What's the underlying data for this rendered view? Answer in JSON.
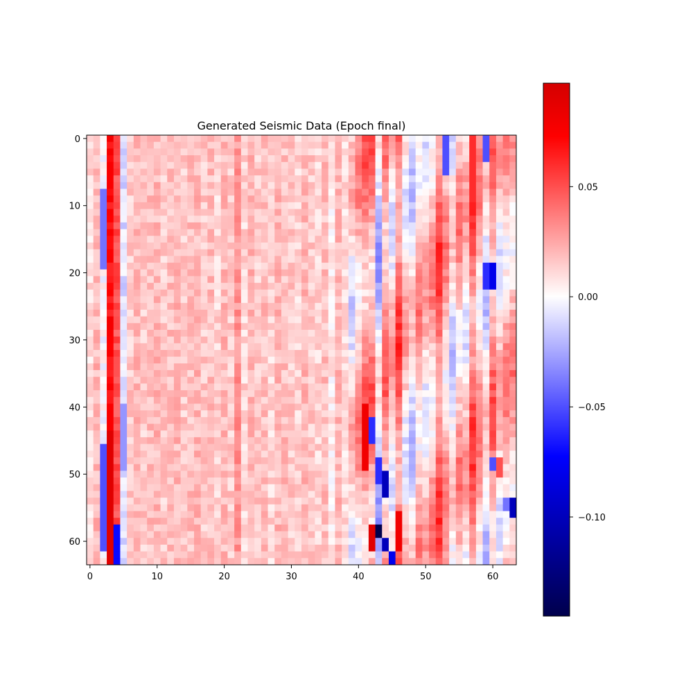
{
  "chart_data": {
    "type": "heatmap",
    "title": "Generated Seismic Data (Epoch final)",
    "xlabel": "",
    "ylabel": "",
    "rows": 64,
    "cols": 64,
    "x_ticks": [
      0,
      10,
      20,
      30,
      40,
      50,
      60
    ],
    "y_ticks": [
      0,
      10,
      20,
      30,
      40,
      50,
      60
    ],
    "colormap": "seismic",
    "colormap_stops": [
      "#00004c",
      "#0000ff",
      "#ffffff",
      "#ff0000",
      "#7f0000"
    ],
    "color_range": [
      -0.145,
      0.097
    ],
    "colorbar_ticks": [
      0.05,
      0.0,
      -0.05,
      -0.1
    ],
    "colorbar_tick_labels": [
      "0.05",
      "0.00",
      "−0.05",
      "−0.10"
    ],
    "column_profile": [
      0.01,
      0.02,
      0.0,
      0.07,
      0.05,
      -0.01,
      0.015,
      0.02,
      0.015,
      0.018,
      0.02,
      0.015,
      0.018,
      0.02,
      0.015,
      0.018,
      0.02,
      0.015,
      0.018,
      0.012,
      0.02,
      0.015,
      0.03,
      0.012,
      0.02,
      0.015,
      0.018,
      0.012,
      0.02,
      0.018,
      0.015,
      0.012,
      0.02,
      0.015,
      0.012,
      0.018,
      0.005,
      0.02,
      0.01,
      0.005,
      0.02,
      0.03,
      0.03,
      -0.01,
      0.03,
      0.01,
      0.04,
      0.01,
      0.0,
      0.02,
      0.01,
      0.02,
      0.04,
      0.02,
      0.0,
      0.02,
      0.01,
      0.04,
      0.02,
      0.0,
      0.03,
      0.01,
      0.02,
      0.02
    ],
    "anomalies": [
      {
        "col": 3,
        "row_start": 44,
        "row_end": 64,
        "value": 0.09
      },
      {
        "col": 2,
        "row_start": 8,
        "row_end": 20,
        "value": -0.04
      },
      {
        "col": 2,
        "row_start": 46,
        "row_end": 62,
        "value": -0.05
      },
      {
        "col": 4,
        "row_start": 58,
        "row_end": 64,
        "value": -0.07
      },
      {
        "col": 5,
        "row_start": 40,
        "row_end": 50,
        "value": -0.03
      },
      {
        "col": 41,
        "row_start": 40,
        "row_end": 50,
        "value": 0.08
      },
      {
        "col": 42,
        "row_start": 42,
        "row_end": 46,
        "value": -0.06
      },
      {
        "col": 43,
        "row_start": 48,
        "row_end": 52,
        "value": -0.06
      },
      {
        "col": 44,
        "row_start": 50,
        "row_end": 54,
        "value": -0.1
      },
      {
        "col": 43,
        "row_start": 58,
        "row_end": 60,
        "value": -0.145
      },
      {
        "col": 42,
        "row_start": 58,
        "row_end": 62,
        "value": 0.09
      },
      {
        "col": 44,
        "row_start": 60,
        "row_end": 62,
        "value": -0.1
      },
      {
        "col": 46,
        "row_start": 56,
        "row_end": 62,
        "value": 0.08
      },
      {
        "col": 45,
        "row_start": 62,
        "row_end": 64,
        "value": -0.08
      },
      {
        "col": 57,
        "row_start": 0,
        "row_end": 10,
        "value": 0.06
      },
      {
        "col": 53,
        "row_start": 0,
        "row_end": 6,
        "value": -0.05
      },
      {
        "col": 59,
        "row_start": 0,
        "row_end": 4,
        "value": -0.05
      },
      {
        "col": 59,
        "row_start": 19,
        "row_end": 23,
        "value": -0.06
      },
      {
        "col": 60,
        "row_start": 19,
        "row_end": 23,
        "value": -0.08
      },
      {
        "col": 63,
        "row_start": 54,
        "row_end": 57,
        "value": -0.1
      },
      {
        "col": 62,
        "row_start": 54,
        "row_end": 56,
        "value": -0.04
      },
      {
        "col": 60,
        "row_start": 48,
        "row_end": 50,
        "value": -0.05
      },
      {
        "col": 61,
        "row_start": 48,
        "row_end": 51,
        "value": 0.05
      }
    ]
  }
}
